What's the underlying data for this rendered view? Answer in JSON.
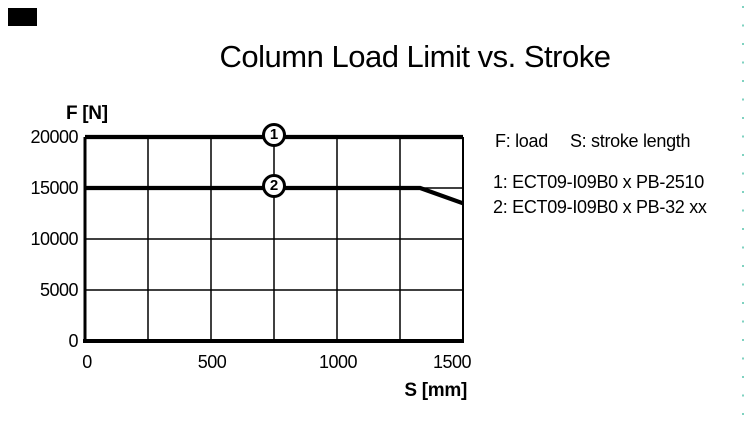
{
  "colors": {
    "ink": "#000000",
    "background": "#ffffff",
    "perforation_dot": "#7fd2c0"
  },
  "corner_mark": "black-rectangle",
  "title": "Column Load Limit vs. Stroke",
  "y_axis": {
    "label": "F [N]",
    "ticks": [
      "20000",
      "15000",
      "10000",
      "5000",
      "0"
    ]
  },
  "x_axis": {
    "label": "S [mm]",
    "ticks": [
      "0",
      "500",
      "1000",
      "1500"
    ]
  },
  "legend": {
    "note_f": "F: load",
    "note_s": "S: stroke length",
    "items": [
      {
        "label": "1: ECT09-I09B0 x PB-2510"
      },
      {
        "label": "2: ECT09-I09B0 x PB-32 xx"
      }
    ]
  },
  "chart_data": {
    "type": "line",
    "title": "Column Load Limit vs. Stroke",
    "xlabel": "S [mm]",
    "ylabel": "F [N]",
    "xlim": [
      0,
      1500
    ],
    "ylim": [
      0,
      20000
    ],
    "x_ticks": [
      0,
      500,
      1000,
      1500
    ],
    "y_ticks": [
      0,
      5000,
      10000,
      15000,
      20000
    ],
    "x_minor_gridline_step": 250,
    "grid": true,
    "legend_position": "right",
    "series": [
      {
        "name": "ECT09-I09B0 x PB-2510",
        "marker": {
          "x": 750,
          "label": "1"
        },
        "points": [
          [
            0,
            20000
          ],
          [
            1500,
            20000
          ]
        ]
      },
      {
        "name": "ECT09-I09B0 x PB-32 xx",
        "marker": {
          "x": 750,
          "label": "2"
        },
        "points": [
          [
            0,
            15000
          ],
          [
            1330,
            15000
          ],
          [
            1500,
            13500
          ]
        ]
      }
    ]
  }
}
